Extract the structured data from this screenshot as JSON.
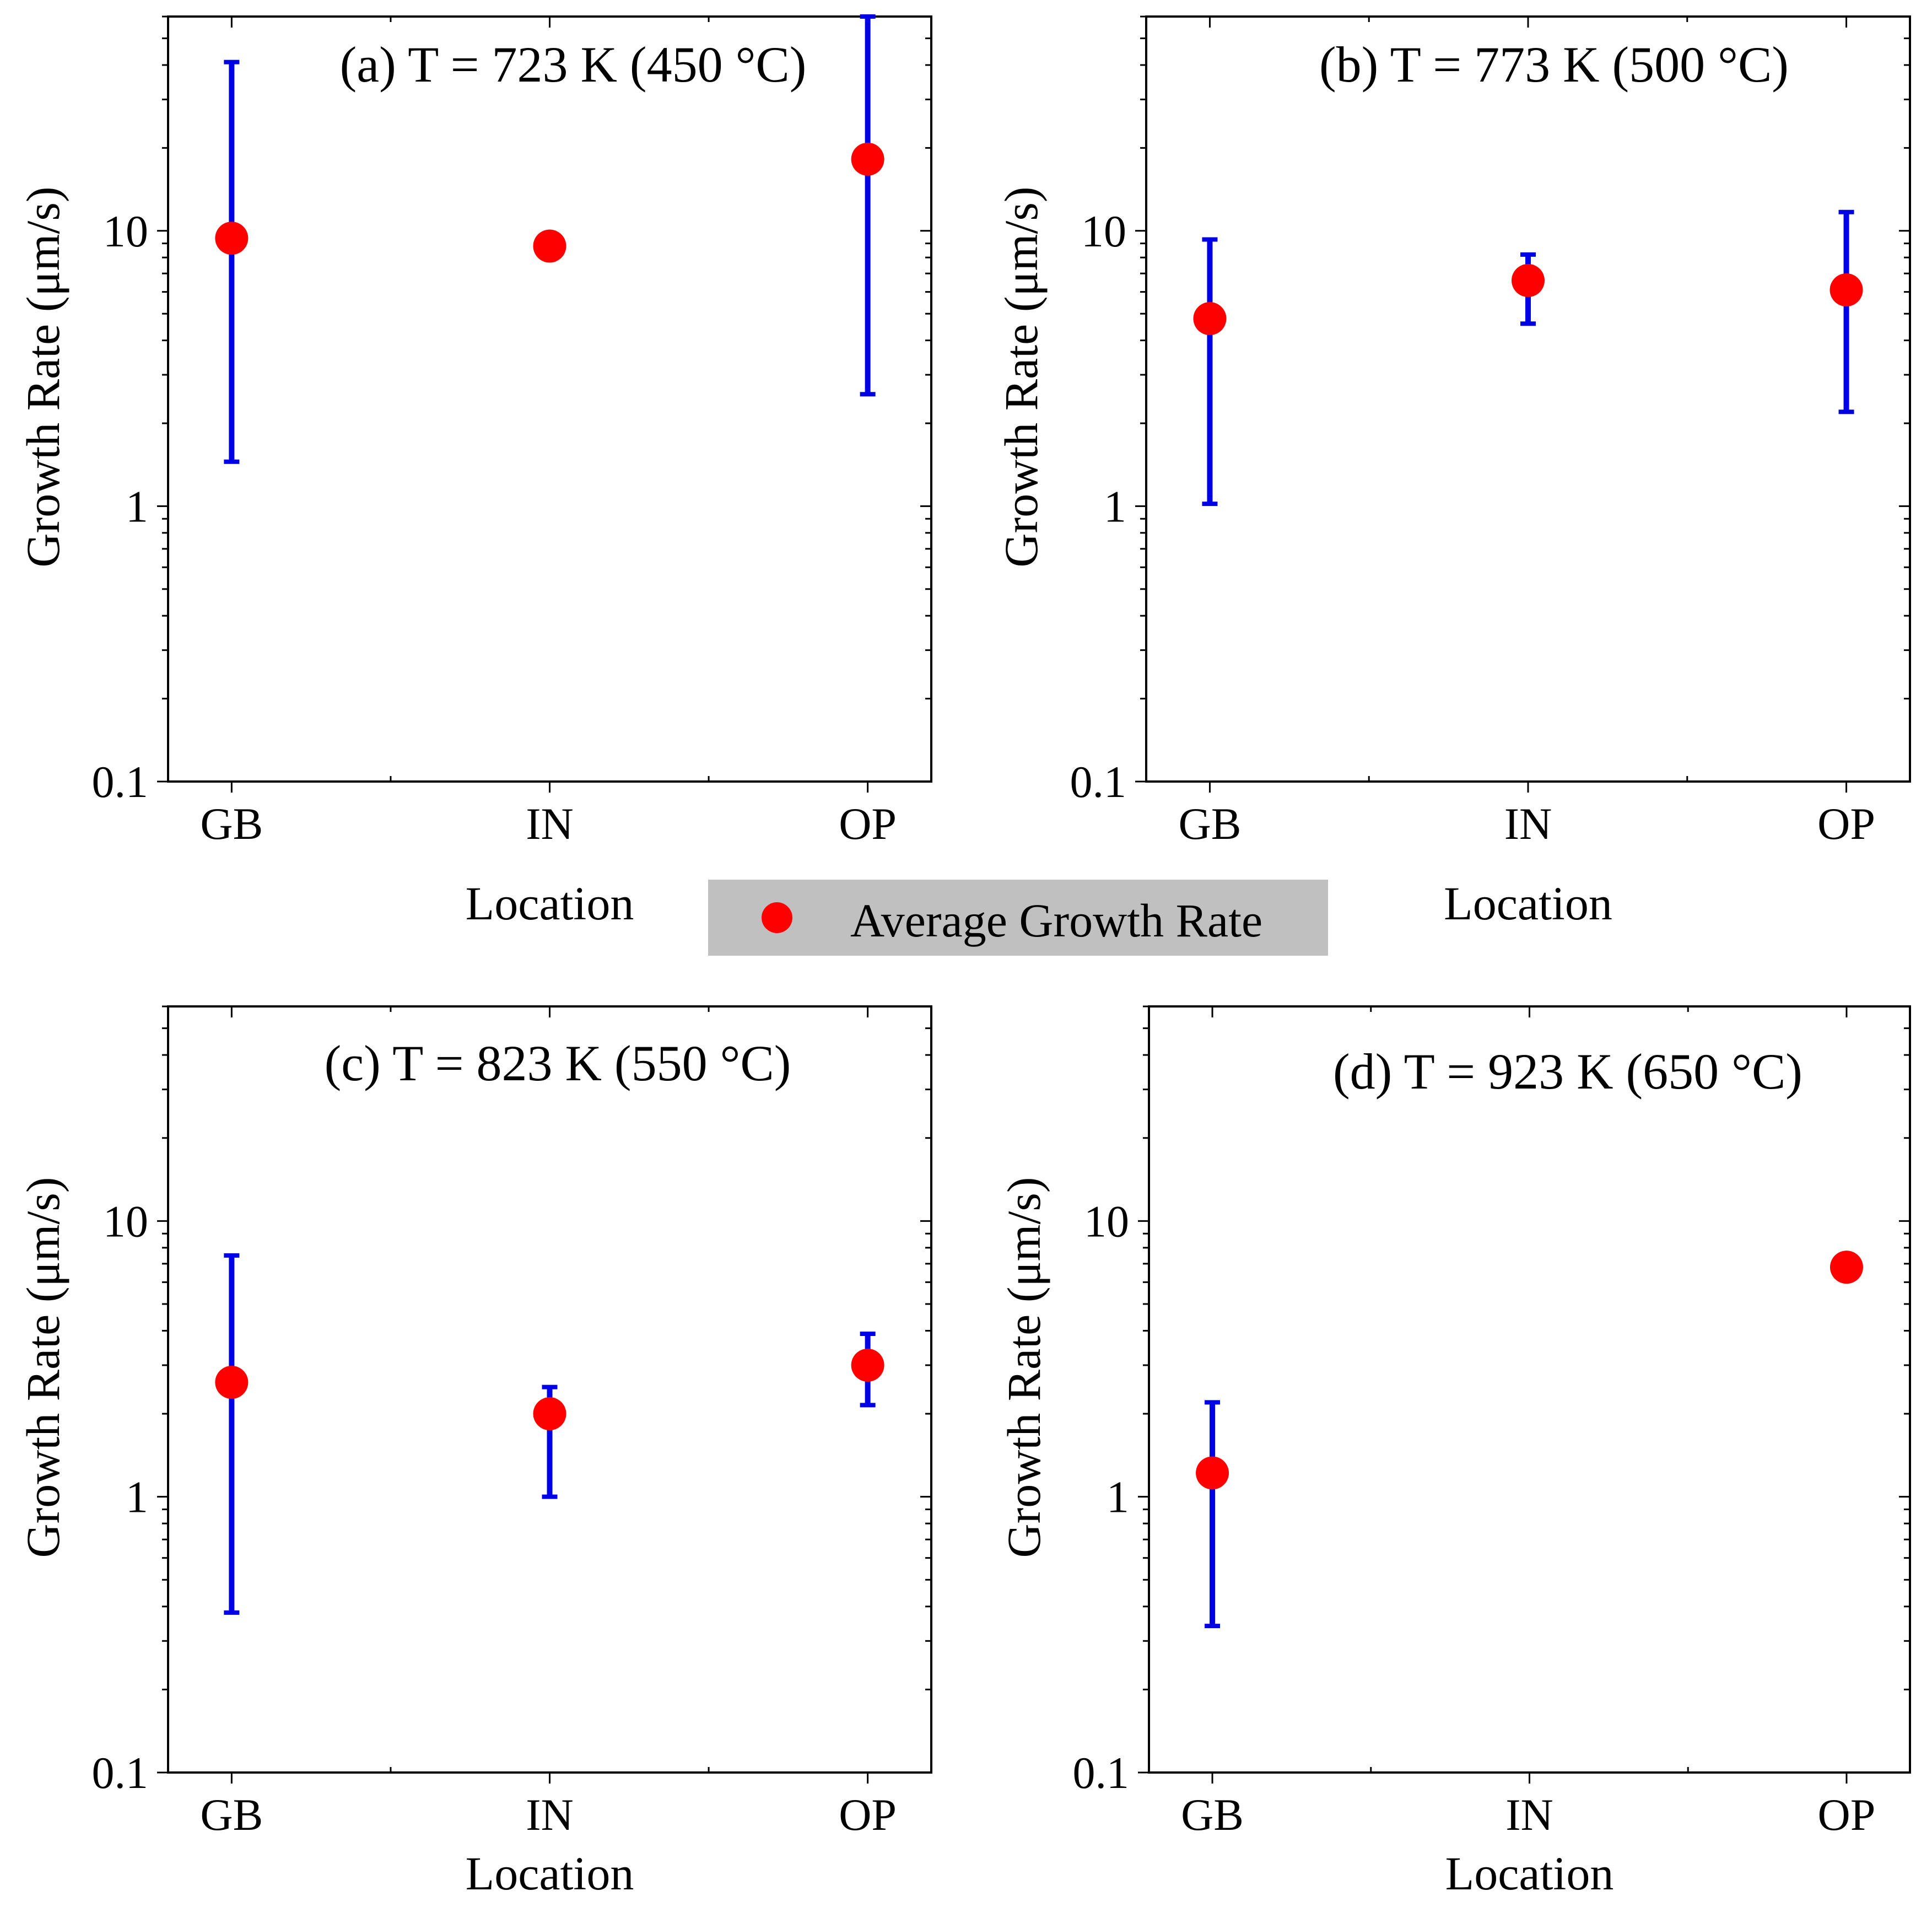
{
  "legend": {
    "label": "Average Growth Rate",
    "marker_color": "#ff0000"
  },
  "colors": {
    "point": "#ff0000",
    "errorbar": "#0000e6",
    "axis": "#000000"
  },
  "chart_data": [
    {
      "type": "scatter",
      "title": "(a) T = 723 K (450 °C)",
      "xlabel": "Location",
      "ylabel": "Growth Rate (μm/s)",
      "yscale": "log",
      "ylim": [
        0.1,
        60
      ],
      "yticks": [
        0.1,
        1,
        10
      ],
      "ytick_labels": [
        "0.1",
        "1",
        "10"
      ],
      "categories": [
        "GB",
        "IN",
        "OP"
      ],
      "values": [
        9.4,
        8.8,
        18.2
      ],
      "error_low": [
        1.45,
        null,
        2.55
      ],
      "error_high": [
        41,
        null,
        60
      ]
    },
    {
      "type": "scatter",
      "title": "(b) T = 773 K (500 °C)",
      "xlabel": "Location",
      "ylabel": "Growth Rate (μm/s)",
      "yscale": "log",
      "ylim": [
        0.1,
        60
      ],
      "yticks": [
        0.1,
        1,
        10
      ],
      "ytick_labels": [
        "0.1",
        "1",
        "10"
      ],
      "categories": [
        "GB",
        "IN",
        "OP"
      ],
      "values": [
        4.8,
        6.6,
        6.1
      ],
      "error_low": [
        1.02,
        4.6,
        2.2
      ],
      "error_high": [
        9.3,
        8.2,
        11.7
      ]
    },
    {
      "type": "scatter",
      "title": "(c) T = 823 K (550 °C)",
      "xlabel": "Location",
      "ylabel": "Growth Rate (μm/s)",
      "yscale": "log",
      "ylim": [
        0.1,
        60
      ],
      "yticks": [
        0.1,
        1,
        10
      ],
      "ytick_labels": [
        "0.1",
        "1",
        "10"
      ],
      "categories": [
        "GB",
        "IN",
        "OP"
      ],
      "values": [
        2.6,
        2.0,
        3.0
      ],
      "error_low": [
        0.38,
        1.0,
        2.15
      ],
      "error_high": [
        7.5,
        2.5,
        3.9
      ]
    },
    {
      "type": "scatter",
      "title": "(d) T = 923 K (650 °C)",
      "xlabel": "Location",
      "ylabel": "Growth Rate (μm/s)",
      "yscale": "log",
      "ylim": [
        0.1,
        60
      ],
      "yticks": [
        0.1,
        1,
        10
      ],
      "ytick_labels": [
        "0.1",
        "1",
        "10"
      ],
      "categories": [
        "GB",
        "IN",
        "OP"
      ],
      "values": [
        1.22,
        null,
        6.8
      ],
      "error_low": [
        0.34,
        null,
        null
      ],
      "error_high": [
        2.2,
        null,
        null
      ]
    }
  ]
}
